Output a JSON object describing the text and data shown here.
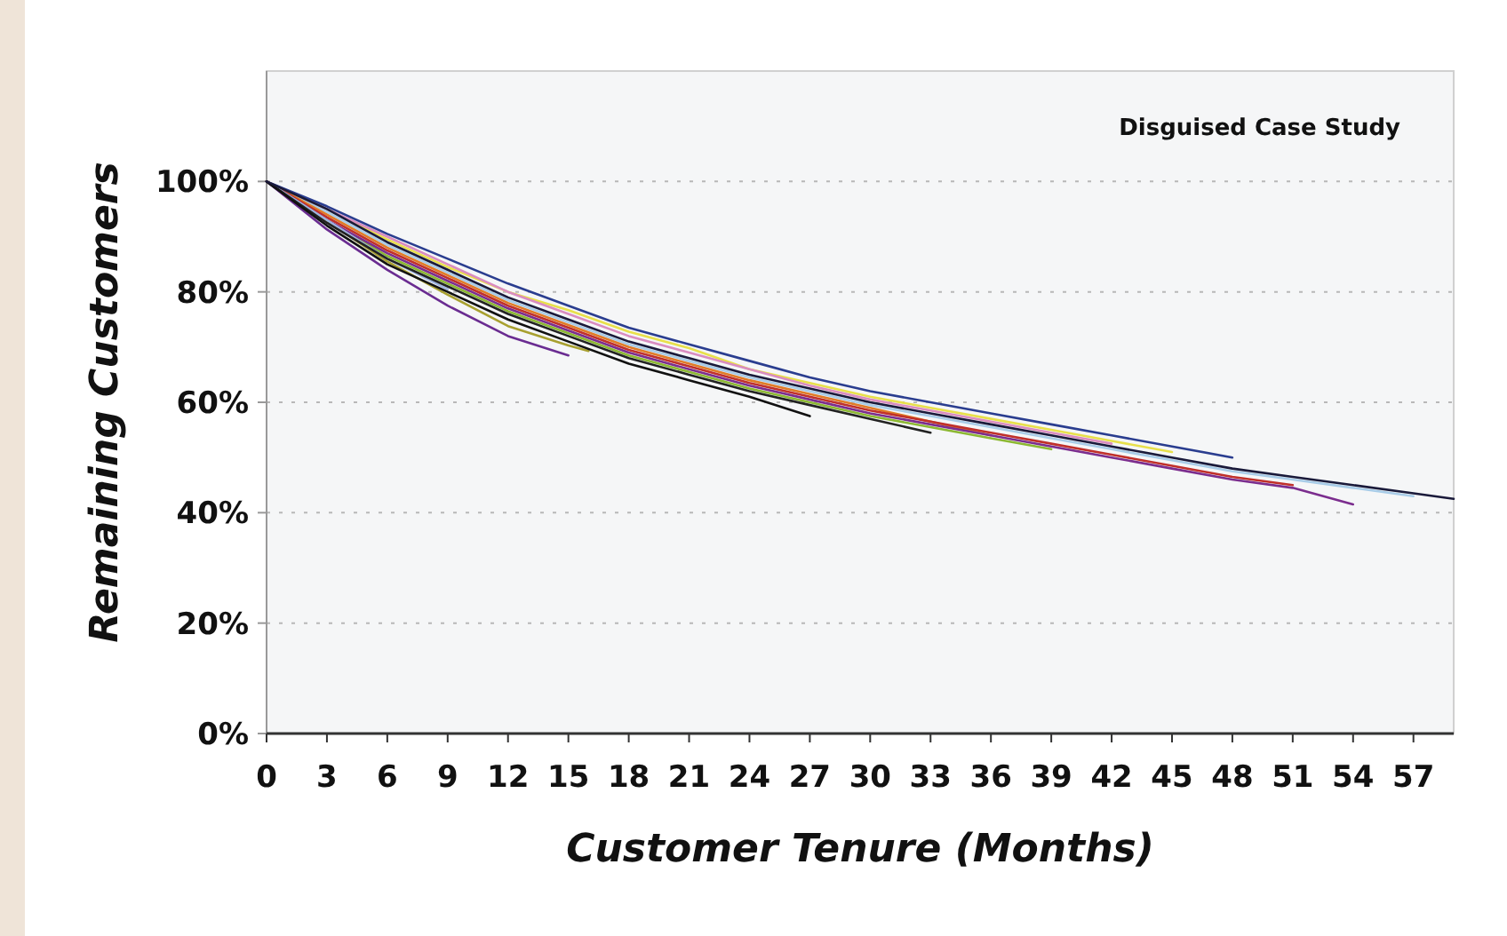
{
  "chart_data": {
    "type": "line",
    "xlabel": "Customer Tenure (Months)",
    "ylabel": "Remaining Customers",
    "annotations": [
      "Disguised Case Study"
    ],
    "xlim": [
      0,
      59
    ],
    "xticks": [
      0,
      3,
      6,
      9,
      12,
      15,
      18,
      21,
      24,
      27,
      30,
      33,
      36,
      39,
      42,
      45,
      48,
      51,
      54,
      57
    ],
    "ylim": [
      0,
      120
    ],
    "yticks": [
      {
        "value": 0,
        "label": "0%"
      },
      {
        "value": 20,
        "label": "20%"
      },
      {
        "value": 40,
        "label": "40%"
      },
      {
        "value": 60,
        "label": "60%"
      },
      {
        "value": 80,
        "label": "80%"
      },
      {
        "value": 100,
        "label": "100%"
      }
    ],
    "grid": "y",
    "series": [
      {
        "color": "#a8cce8",
        "x": [
          0,
          3,
          6,
          9,
          12,
          15,
          18,
          21,
          24,
          27,
          30,
          33,
          36,
          39,
          42,
          45,
          48,
          51,
          54,
          57
        ],
        "values": [
          100,
          94.5,
          88.5,
          83.5,
          78.5,
          74.5,
          70.5,
          67.5,
          64.5,
          62,
          59.5,
          57.5,
          55.5,
          53.5,
          51.5,
          49.5,
          47.5,
          46,
          44.5,
          43
        ]
      },
      {
        "color": "#e8e04a",
        "x": [
          0,
          3,
          6,
          9,
          12,
          15,
          18,
          21,
          24,
          27,
          30,
          33,
          36,
          39,
          42,
          45
        ],
        "values": [
          100,
          95,
          89.5,
          84.5,
          80,
          76.7,
          72.8,
          69.8,
          66,
          63.5,
          61,
          59,
          57,
          55,
          53,
          51
        ]
      },
      {
        "color": "#d98cc0",
        "x": [
          0,
          3,
          6,
          9,
          12,
          15,
          18,
          21,
          24,
          27,
          30,
          33,
          36,
          39,
          42
        ],
        "values": [
          100,
          95,
          90,
          85,
          80,
          76,
          72,
          69,
          66,
          63,
          60.5,
          58.5,
          56.5,
          54.5,
          52.5
        ]
      },
      {
        "color": "#8cb832",
        "x": [
          0,
          3,
          6,
          9,
          12,
          15,
          18,
          21,
          24,
          27,
          30,
          33,
          36,
          39
        ],
        "values": [
          100,
          93,
          86.5,
          81.5,
          76.5,
          72.5,
          68.5,
          65.5,
          62.5,
          60,
          57.5,
          55.5,
          53.5,
          51.5
        ]
      },
      {
        "color": "#e07b26",
        "x": [
          0,
          3,
          6,
          9,
          12,
          15,
          18,
          21,
          24,
          27,
          30,
          33,
          36
        ],
        "values": [
          100,
          94,
          88,
          83,
          78,
          74,
          70,
          67,
          64,
          61.5,
          59,
          56.5,
          54
        ]
      },
      {
        "color": "#c0302a",
        "x": [
          0,
          3,
          6,
          9,
          12,
          15,
          18,
          21,
          24,
          27,
          30,
          33,
          36,
          39,
          42,
          45,
          48,
          51
        ],
        "values": [
          100,
          93.5,
          87.5,
          82.5,
          77.5,
          73.5,
          69.5,
          66.5,
          63.5,
          61,
          58.5,
          56.5,
          54.5,
          52.5,
          50.5,
          48.5,
          46.5,
          45
        ]
      },
      {
        "color": "#2a3d8f",
        "x": [
          0,
          3,
          6,
          9,
          12,
          15,
          18,
          21,
          24,
          27,
          30,
          33,
          36,
          39,
          42,
          45,
          48
        ],
        "values": [
          100,
          95.5,
          90.5,
          86,
          81.5,
          77.5,
          73.5,
          70.5,
          67.5,
          64.5,
          62,
          60,
          58,
          56,
          54,
          52,
          50
        ]
      },
      {
        "color": "#7b2d8e",
        "x": [
          0,
          3,
          6,
          9,
          12,
          15,
          18,
          21,
          24,
          27,
          30,
          33,
          36,
          39,
          42,
          45,
          48,
          51,
          54
        ],
        "values": [
          100,
          93,
          87,
          82,
          77,
          73,
          69,
          66,
          63,
          60.5,
          58,
          56,
          54,
          52,
          50,
          48,
          46,
          44.5,
          41.5
        ]
      },
      {
        "color": "#a8a030",
        "x": [
          0,
          3,
          6,
          9,
          12,
          15,
          16
        ],
        "values": [
          100,
          92.8,
          85.5,
          79.5,
          73.8,
          70.3,
          69.3
        ]
      },
      {
        "color": "#6a2c91",
        "x": [
          0,
          3,
          6,
          9,
          12,
          15
        ],
        "values": [
          100,
          91.3,
          84,
          77.5,
          72,
          68.5
        ]
      },
      {
        "color": "#9fb4e0",
        "x": [
          0,
          3,
          6,
          9
        ],
        "values": [
          100,
          93,
          86,
          80.5
        ]
      },
      {
        "color": "#222222",
        "x": [
          0,
          3,
          6,
          9,
          12,
          15,
          18,
          21,
          24,
          27,
          30,
          33
        ],
        "values": [
          100,
          92.5,
          86,
          81,
          76,
          72,
          68,
          65,
          62,
          59.5,
          57,
          54.5
        ]
      },
      {
        "color": "#111111",
        "x": [
          0,
          3,
          6,
          9,
          12,
          15,
          18,
          21,
          24,
          27
        ],
        "values": [
          100,
          92,
          85,
          80,
          75,
          71,
          67,
          64,
          61,
          57.5
        ]
      },
      {
        "color": "#1a1a3a",
        "x": [
          0,
          3,
          6,
          9,
          12,
          15,
          18,
          21,
          24,
          27,
          30,
          33,
          36,
          39,
          42,
          45,
          48,
          51,
          54,
          57,
          59
        ],
        "values": [
          100,
          95,
          89,
          84,
          79,
          75,
          71,
          68,
          65,
          62.5,
          60,
          58,
          56,
          54,
          52,
          50,
          48,
          46.5,
          45,
          43.5,
          42.5
        ]
      }
    ]
  }
}
